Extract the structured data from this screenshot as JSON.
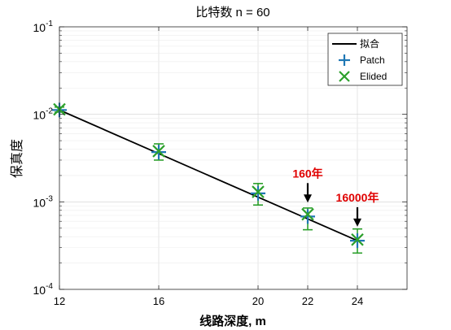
{
  "chart_data": {
    "type": "scatter",
    "title": "比特数 n = 60",
    "xlabel": "线路深度, m",
    "ylabel": "保真度",
    "xlim": [
      12,
      26
    ],
    "ylim": [
      0.0001,
      0.1
    ],
    "yscale": "log",
    "xticks": [
      12,
      16,
      20,
      22,
      24
    ],
    "xtick_labels": [
      "12",
      "16",
      "20",
      "22",
      "24"
    ],
    "yticks": [
      0.0001,
      0.001,
      0.01,
      0.1
    ],
    "ytick_labels": [
      {
        "base": "10",
        "exp": "-4"
      },
      {
        "base": "10",
        "exp": "-3"
      },
      {
        "base": "10",
        "exp": "-2"
      },
      {
        "base": "10",
        "exp": "-1"
      }
    ],
    "grid": true,
    "legend": {
      "position": "top-right",
      "entries": [
        {
          "label": "拟合",
          "marker": "line",
          "color": "#000000"
        },
        {
          "label": "Patch",
          "marker": "plus",
          "color": "#1f77b4"
        },
        {
          "label": "Elided",
          "marker": "x",
          "color": "#2ca02c"
        }
      ]
    },
    "fit": {
      "name": "拟合",
      "color": "#000000",
      "x": [
        12,
        24
      ],
      "y": [
        0.0112,
        0.00036
      ]
    },
    "series": [
      {
        "name": "Patch",
        "marker": "plus",
        "color": "#1f77b4",
        "x": [
          12,
          16,
          20,
          22,
          24
        ],
        "y": [
          0.0112,
          0.0037,
          0.00125,
          0.00068,
          0.00036
        ]
      },
      {
        "name": "Elided",
        "marker": "x",
        "color": "#2ca02c",
        "x": [
          12,
          16,
          20,
          22,
          24
        ],
        "y": [
          0.0114,
          0.0038,
          0.0013,
          0.00072,
          0.00037
        ],
        "err_low": [
          0.0106,
          0.003,
          0.00092,
          0.00048,
          0.00026
        ],
        "err_high": [
          0.0121,
          0.0046,
          0.00162,
          0.00085,
          0.00049
        ]
      }
    ],
    "annotations": [
      {
        "text": "160年",
        "x": 22,
        "y": 0.00098,
        "color": "#e00000"
      },
      {
        "text": "16000年",
        "x": 24,
        "y": 0.00052,
        "color": "#e00000"
      }
    ]
  }
}
